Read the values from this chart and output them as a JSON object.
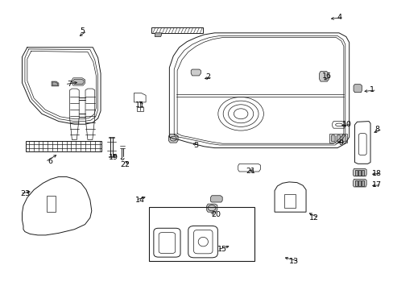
{
  "bg_color": "#ffffff",
  "line_color": "#1a1a1a",
  "fig_width": 4.89,
  "fig_height": 3.6,
  "dpi": 100,
  "label_positions": {
    "1": [
      0.946,
      0.69,
      0.92,
      0.685
    ],
    "2": [
      0.528,
      0.735,
      0.513,
      0.728
    ],
    "3": [
      0.498,
      0.498,
      0.505,
      0.51
    ],
    "4": [
      0.862,
      0.942,
      0.835,
      0.936
    ],
    "5": [
      0.208,
      0.895,
      0.196,
      0.872
    ],
    "6": [
      0.126,
      0.442,
      0.148,
      0.47
    ],
    "7": [
      0.176,
      0.71,
      0.202,
      0.718
    ],
    "8": [
      0.96,
      0.555,
      0.945,
      0.54
    ],
    "9": [
      0.866,
      0.508,
      0.852,
      0.51
    ],
    "10": [
      0.882,
      0.572,
      0.862,
      0.565
    ],
    "11": [
      0.355,
      0.638,
      0.348,
      0.656
    ],
    "12": [
      0.798,
      0.248,
      0.78,
      0.268
    ],
    "13": [
      0.748,
      0.098,
      0.718,
      0.112
    ],
    "14": [
      0.356,
      0.31,
      0.375,
      0.322
    ],
    "15": [
      0.564,
      0.138,
      0.588,
      0.152
    ],
    "16": [
      0.832,
      0.738,
      0.818,
      0.722
    ],
    "17": [
      0.958,
      0.362,
      0.94,
      0.358
    ],
    "18": [
      0.958,
      0.402,
      0.94,
      0.398
    ],
    "19": [
      0.288,
      0.458,
      0.282,
      0.472
    ],
    "20": [
      0.548,
      0.258,
      0.548,
      0.272
    ],
    "21": [
      0.638,
      0.408,
      0.628,
      0.415
    ],
    "22": [
      0.318,
      0.432,
      0.312,
      0.448
    ],
    "23": [
      0.062,
      0.332,
      0.082,
      0.34
    ]
  }
}
